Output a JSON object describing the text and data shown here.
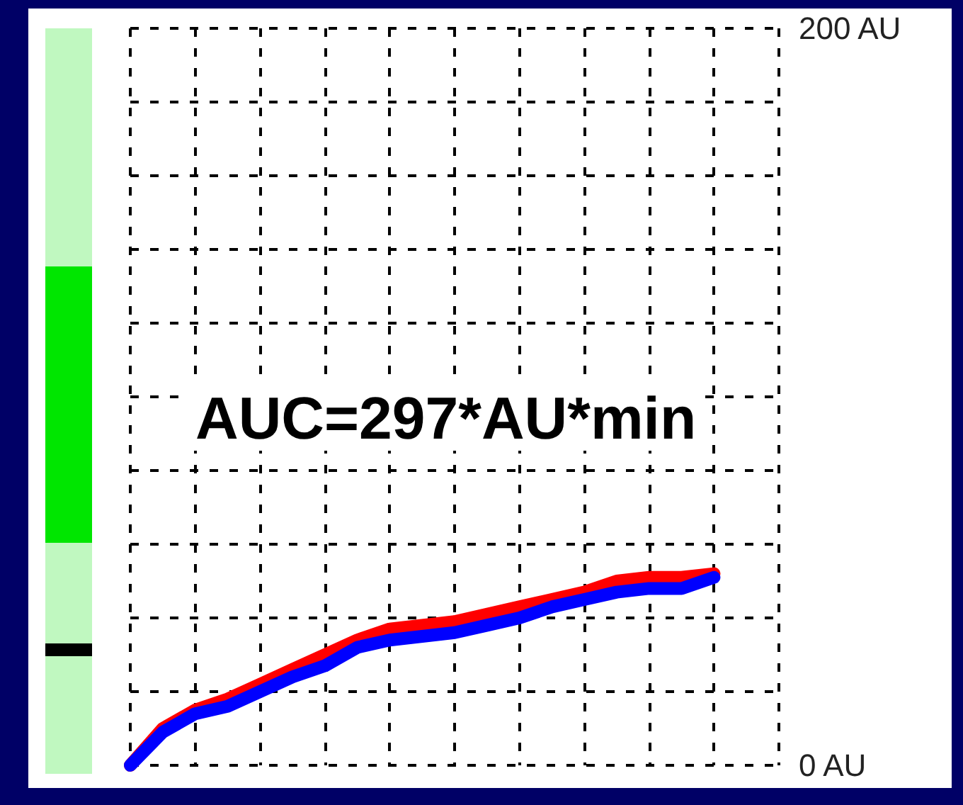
{
  "chart_data": {
    "type": "line",
    "categories": [
      null,
      null,
      null,
      null,
      null,
      null,
      null,
      null,
      null,
      null,
      null,
      null,
      null,
      null,
      null,
      null,
      null,
      null,
      null,
      null,
      null
    ],
    "series": [
      {
        "color": "#ff0000",
        "values": [
          0,
          10,
          15,
          18,
          22,
          26,
          30,
          34,
          37,
          38,
          39,
          41,
          43,
          45,
          47,
          50,
          51,
          51,
          52,
          null,
          null
        ]
      },
      {
        "color": "#0000ff",
        "values": [
          0,
          9,
          14,
          16,
          20,
          24,
          27,
          32,
          34,
          35,
          36,
          38,
          40,
          43,
          45,
          47,
          48,
          48,
          51,
          null,
          null
        ]
      }
    ],
    "ylim": [
      0,
      200
    ],
    "yticks": [
      {
        "value": 0,
        "label": "0 AU"
      },
      {
        "value": 20,
        "label": null
      },
      {
        "value": 40,
        "label": null
      },
      {
        "value": 60,
        "label": null
      },
      {
        "value": 80,
        "label": null
      },
      {
        "value": 100,
        "label": null
      },
      {
        "value": 120,
        "label": null
      },
      {
        "value": 140,
        "label": null
      },
      {
        "value": 160,
        "label": null
      },
      {
        "value": 180,
        "label": null
      },
      {
        "value": 200,
        "label": "200 AU"
      }
    ],
    "tick_labels": "y",
    "grid": true,
    "marker": "none",
    "line_style": "solid",
    "annotations": [
      "AUC=297*AU*min"
    ]
  }
}
